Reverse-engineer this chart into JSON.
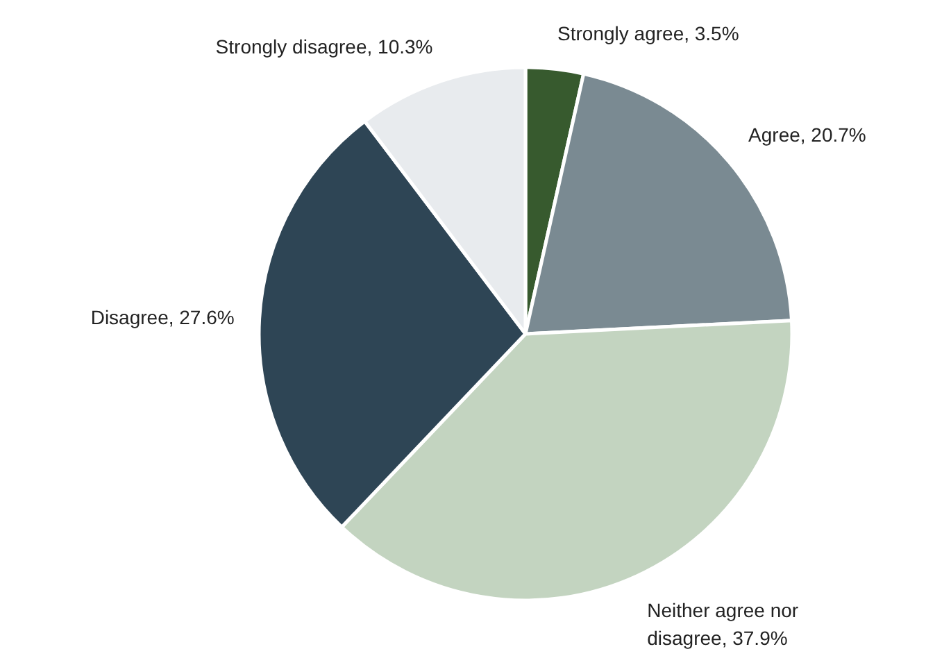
{
  "chart_data": {
    "type": "pie",
    "categories": [
      "Strongly agree",
      "Agree",
      "Neither agree nor disagree",
      "Disagree",
      "Strongly disagree"
    ],
    "values": [
      3.5,
      20.7,
      37.9,
      27.6,
      10.3
    ],
    "value_labels": [
      "3.5%",
      "20.7%",
      "37.9%",
      "27.6%",
      "10.3%"
    ],
    "colors": [
      "#375a2e",
      "#7a8a92",
      "#c3d4c0",
      "#2e4555",
      "#e8ebee"
    ]
  }
}
